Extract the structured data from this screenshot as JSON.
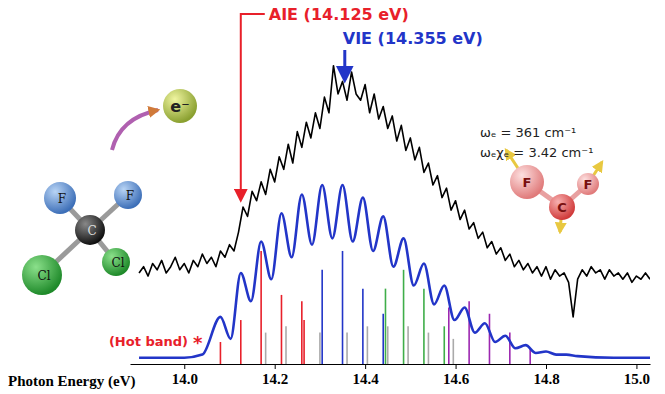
{
  "chart_data": {
    "type": "line",
    "x_label": "Photon Energy (eV)",
    "xlim": [
      13.88,
      15.03
    ],
    "xticks": [
      {
        "value": 14,
        "label": "14.0"
      },
      14.2,
      14.4,
      14.6,
      14.8,
      {
        "value": 15,
        "label": "15.0"
      }
    ],
    "ylim": [
      0,
      100
    ],
    "tick_labels": "x",
    "grid": false,
    "series": [
      {
        "type": "line",
        "color": "#000000",
        "line_style": "solid",
        "x": [
          13.9,
          13.91,
          13.92,
          13.93,
          13.94,
          13.95,
          13.96,
          13.97,
          13.98,
          13.99,
          14,
          14.01,
          14.02,
          14.03,
          14.04,
          14.05,
          14.06,
          14.07,
          14.08,
          14.09,
          14.1,
          14.11,
          14.12,
          14.13,
          14.14,
          14.15,
          14.16,
          14.17,
          14.18,
          14.19,
          14.2,
          14.21,
          14.22,
          14.23,
          14.24,
          14.25,
          14.26,
          14.27,
          14.28,
          14.29,
          14.3,
          14.31,
          14.32,
          14.33,
          14.34,
          14.35,
          14.36,
          14.37,
          14.38,
          14.39,
          14.4,
          14.41,
          14.42,
          14.43,
          14.44,
          14.45,
          14.46,
          14.47,
          14.48,
          14.49,
          14.5,
          14.51,
          14.52,
          14.53,
          14.54,
          14.55,
          14.56,
          14.57,
          14.58,
          14.59,
          14.6,
          14.61,
          14.62,
          14.63,
          14.64,
          14.65,
          14.66,
          14.67,
          14.68,
          14.69,
          14.7,
          14.71,
          14.72,
          14.73,
          14.74,
          14.75,
          14.76,
          14.77,
          14.78,
          14.79,
          14.8,
          14.81,
          14.82,
          14.83,
          14.84,
          14.85,
          14.86,
          14.87,
          14.88,
          14.89,
          14.9,
          14.91,
          14.92,
          14.93,
          14.94,
          14.95,
          14.96,
          14.97,
          14.98,
          14.99,
          15,
          15.01,
          15.02,
          15.03
        ],
        "values": [
          29,
          31,
          28,
          32,
          30,
          33,
          29,
          31,
          34,
          30,
          32,
          29,
          33,
          31,
          35,
          32,
          34,
          31,
          36,
          34,
          38,
          36,
          42,
          50,
          47,
          55,
          52,
          58,
          54,
          62,
          58,
          66,
          62,
          70,
          64,
          74,
          69,
          77,
          72,
          80,
          75,
          85,
          80,
          95,
          86,
          90,
          84,
          93,
          86,
          84,
          89,
          80,
          86,
          78,
          82,
          75,
          79,
          71,
          76,
          68,
          72,
          65,
          69,
          61,
          64,
          57,
          60,
          53,
          56,
          49,
          52,
          46,
          49,
          43,
          45,
          40,
          42,
          37,
          39,
          35,
          37,
          33,
          35,
          31,
          33,
          30,
          32,
          29,
          31,
          28,
          31,
          27,
          30,
          28,
          29,
          26,
          15,
          27,
          30,
          28,
          31,
          29,
          30,
          27,
          30,
          28,
          29,
          27,
          29,
          26,
          28,
          27,
          29,
          27
        ]
      },
      {
        "type": "line",
        "color": "#2235c8",
        "line_style": "smooth",
        "x": [
          13.9,
          14,
          14.04,
          14.08,
          14.1025,
          14.125,
          14.1475,
          14.17,
          14.1925,
          14.215,
          14.2375,
          14.26,
          14.2825,
          14.305,
          14.3275,
          14.35,
          14.3725,
          14.395,
          14.4175,
          14.44,
          14.4625,
          14.485,
          14.5075,
          14.53,
          14.5525,
          14.575,
          14.5975,
          14.62,
          14.6425,
          14.665,
          14.6875,
          14.71,
          14.7325,
          14.755,
          14.7775,
          14.8,
          14.8225,
          14.845,
          14.87,
          14.95,
          15.03
        ],
        "values": [
          2,
          2,
          3,
          15,
          8,
          29,
          20,
          39,
          27,
          48,
          34,
          54,
          38,
          57,
          40,
          57,
          39,
          53,
          36,
          47,
          31,
          40,
          25,
          32,
          19,
          25,
          14,
          18,
          10,
          13,
          7,
          9,
          5,
          6,
          3.5,
          4,
          3,
          3,
          2.5,
          2,
          2
        ]
      },
      {
        "type": "stick",
        "x": [
          14.08,
          14.125,
          14.17,
          14.18,
          14.215,
          14.225,
          14.26,
          14.265,
          14.3,
          14.305,
          14.35,
          14.36,
          14.395,
          14.405,
          14.44,
          14.445,
          14.45,
          14.485,
          14.495,
          14.53,
          14.54,
          14.575,
          14.585,
          14.595,
          14.63,
          14.675,
          14.72,
          14.765
        ],
        "values": [
          7,
          14,
          36,
          10,
          22,
          12,
          20,
          14,
          10,
          30,
          36,
          10,
          24,
          12,
          16,
          24,
          12,
          30,
          12,
          24,
          10,
          12,
          18,
          8,
          20,
          16,
          10,
          5
        ],
        "colors": [
          "#e8202a",
          "#e8202a",
          "#e8202a",
          "#aaaaaa",
          "#e8202a",
          "#aaaaaa",
          "#e8202a",
          "#e8202a",
          "#aaaaaa",
          "#2235c8",
          "#2235c8",
          "#aaaaaa",
          "#2235c8",
          "#aaaaaa",
          "#2235c8",
          "#3fae49",
          "#aaaaaa",
          "#3fae49",
          "#aaaaaa",
          "#3fae49",
          "#aaaaaa",
          "#3fae49",
          "#9c27b0",
          "#aaaaaa",
          "#9c27b0",
          "#9c27b0",
          "#9c27b0",
          "#9c27b0"
        ]
      }
    ],
    "annotations": [
      {
        "text": "AIE (14.125 eV)",
        "x": 14.125,
        "color": "#e8202a"
      },
      {
        "text": "VIE (14.355 eV)",
        "x": 14.355,
        "color": "#2235c8"
      },
      {
        "text": "(Hot band)",
        "color": "#e8202a"
      },
      {
        "text": "*",
        "color": "#e8202a"
      },
      {
        "text": "ωₑ = 361 cm⁻¹",
        "color": "#222222"
      },
      {
        "text": "ωₑχₑ = 3.42 cm⁻¹",
        "color": "#222222"
      }
    ],
    "molecule_labels": [
      "F",
      "F",
      "C",
      "Cl",
      "Cl"
    ],
    "electron_label": "e⁻",
    "vibration_labels": [
      "F",
      "C",
      "F"
    ]
  }
}
